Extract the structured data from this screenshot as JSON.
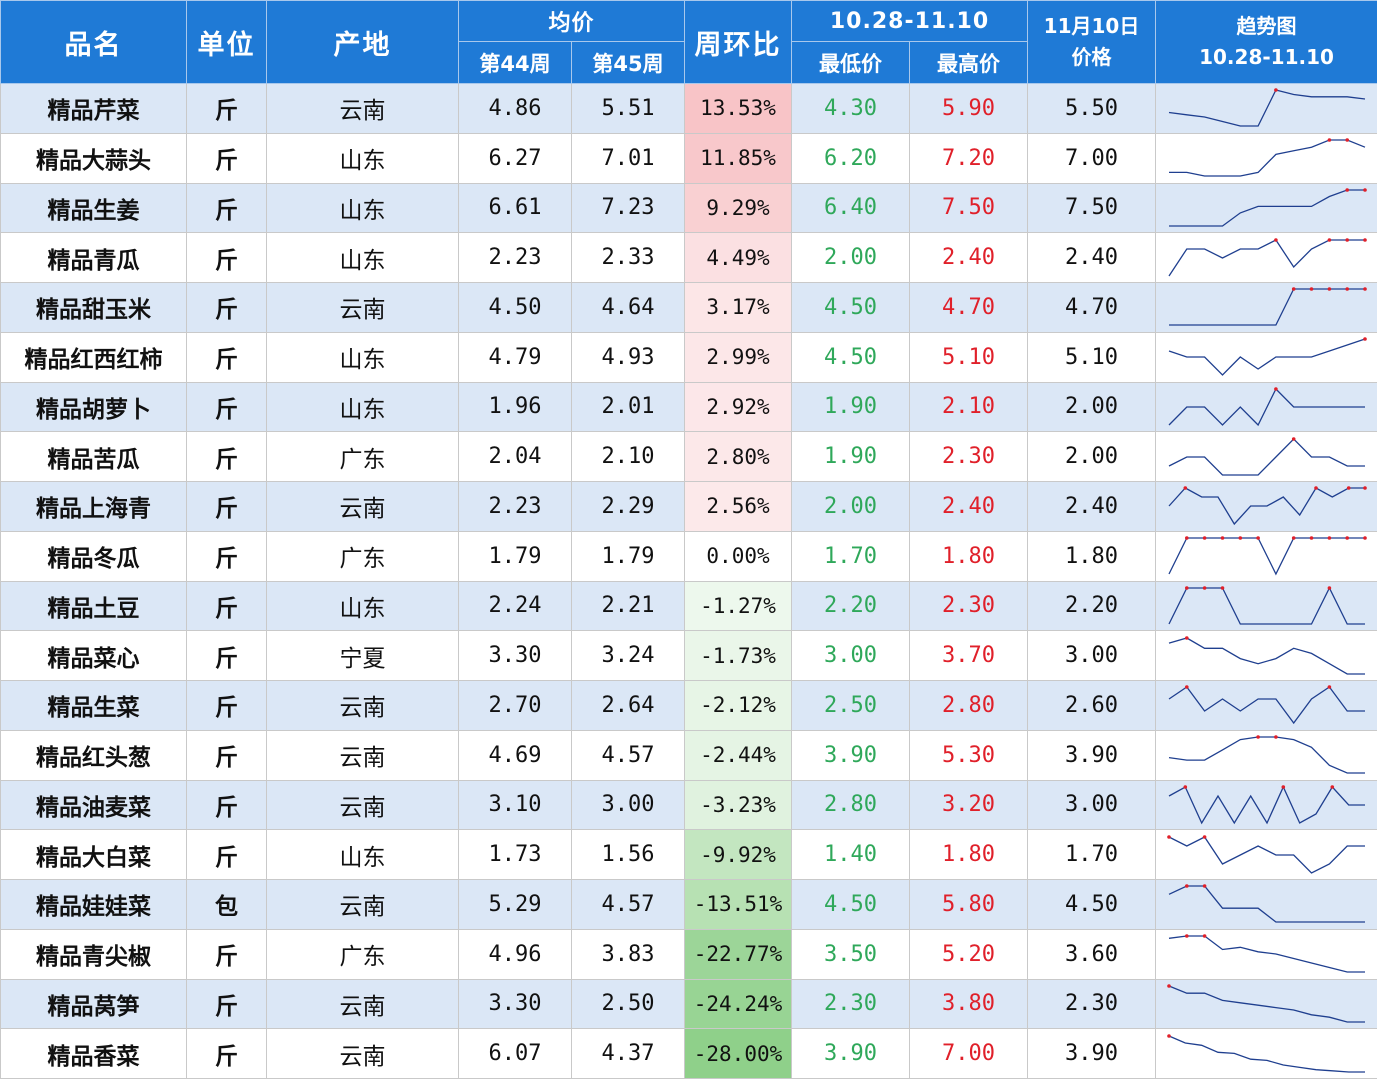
{
  "header": {
    "name": "品名",
    "unit": "单位",
    "origin": "产地",
    "avg_price": "均价",
    "week44": "第44周",
    "week45": "第45周",
    "wow": "周环比",
    "range": "10.28-11.10",
    "low": "最低价",
    "high": "最高价",
    "price_date_line1": "11月10日",
    "price_date_line2": "价格",
    "trend_line1": "趋势图",
    "trend_line2": "10.28-11.10"
  },
  "colors": {
    "header_bg": "#1f7ad6",
    "row_blue": "#dbe7f6",
    "low_text": "#2fa85a",
    "high_text": "#e0202a",
    "positive_max": "#f4a3a8",
    "negative_max": "#8fd08a"
  },
  "rows": [
    {
      "name": "精品芹菜",
      "unit": "斤",
      "origin": "云南",
      "w44": "4.86",
      "w45": "5.51",
      "chg": "13.53%",
      "chg_value": 13.53,
      "low": "4.30",
      "high": "5.90",
      "price": "5.50",
      "trend": [
        4.9,
        4.8,
        4.7,
        4.5,
        4.3,
        4.3,
        5.9,
        5.7,
        5.6,
        5.6,
        5.6,
        5.5
      ]
    },
    {
      "name": "精品大蒜头",
      "unit": "斤",
      "origin": "山东",
      "w44": "6.27",
      "w45": "7.01",
      "chg": "11.85%",
      "chg_value": 11.85,
      "low": "6.20",
      "high": "7.20",
      "price": "7.00",
      "trend": [
        6.3,
        6.3,
        6.2,
        6.2,
        6.2,
        6.3,
        6.8,
        6.9,
        7.0,
        7.2,
        7.2,
        7.0
      ]
    },
    {
      "name": "精品生姜",
      "unit": "斤",
      "origin": "山东",
      "w44": "6.61",
      "w45": "7.23",
      "chg": "9.29%",
      "chg_value": 9.29,
      "low": "6.40",
      "high": "7.50",
      "price": "7.50",
      "trend": [
        6.4,
        6.4,
        6.4,
        6.4,
        6.8,
        7.0,
        7.0,
        7.0,
        7.0,
        7.3,
        7.5,
        7.5
      ]
    },
    {
      "name": "精品青瓜",
      "unit": "斤",
      "origin": "山东",
      "w44": "2.23",
      "w45": "2.33",
      "chg": "4.49%",
      "chg_value": 4.49,
      "low": "2.00",
      "high": "2.40",
      "price": "2.40",
      "trend": [
        2.0,
        2.3,
        2.3,
        2.2,
        2.3,
        2.3,
        2.4,
        2.1,
        2.3,
        2.4,
        2.4,
        2.4
      ]
    },
    {
      "name": "精品甜玉米",
      "unit": "斤",
      "origin": "云南",
      "w44": "4.50",
      "w45": "4.64",
      "chg": "3.17%",
      "chg_value": 3.17,
      "low": "4.50",
      "high": "4.70",
      "price": "4.70",
      "trend": [
        4.5,
        4.5,
        4.5,
        4.5,
        4.5,
        4.5,
        4.5,
        4.7,
        4.7,
        4.7,
        4.7,
        4.7
      ]
    },
    {
      "name": "精品红西红柿",
      "unit": "斤",
      "origin": "山东",
      "w44": "4.79",
      "w45": "4.93",
      "chg": "2.99%",
      "chg_value": 2.99,
      "low": "4.50",
      "high": "5.10",
      "price": "5.10",
      "trend": [
        4.9,
        4.8,
        4.8,
        4.5,
        4.8,
        4.6,
        4.8,
        4.8,
        4.8,
        4.9,
        5.0,
        5.1
      ]
    },
    {
      "name": "精品胡萝卜",
      "unit": "斤",
      "origin": "山东",
      "w44": "1.96",
      "w45": "2.01",
      "chg": "2.92%",
      "chg_value": 2.92,
      "low": "1.90",
      "high": "2.10",
      "price": "2.00",
      "trend": [
        1.9,
        2.0,
        2.0,
        1.9,
        2.0,
        1.9,
        2.1,
        2.0,
        2.0,
        2.0,
        2.0,
        2.0
      ]
    },
    {
      "name": "精品苦瓜",
      "unit": "斤",
      "origin": "广东",
      "w44": "2.04",
      "w45": "2.10",
      "chg": "2.80%",
      "chg_value": 2.8,
      "low": "1.90",
      "high": "2.30",
      "price": "2.00",
      "trend": [
        2.0,
        2.1,
        2.1,
        1.9,
        1.9,
        1.9,
        2.1,
        2.3,
        2.1,
        2.1,
        2.0,
        2.0
      ]
    },
    {
      "name": "精品上海青",
      "unit": "斤",
      "origin": "云南",
      "w44": "2.23",
      "w45": "2.29",
      "chg": "2.56%",
      "chg_value": 2.56,
      "low": "2.00",
      "high": "2.40",
      "price": "2.40",
      "trend": [
        2.2,
        2.4,
        2.3,
        2.3,
        2.0,
        2.2,
        2.2,
        2.3,
        2.1,
        2.4,
        2.3,
        2.4,
        2.4
      ]
    },
    {
      "name": "精品冬瓜",
      "unit": "斤",
      "origin": "广东",
      "w44": "1.79",
      "w45": "1.79",
      "chg": "0.00%",
      "chg_value": 0.0,
      "low": "1.70",
      "high": "1.80",
      "price": "1.80",
      "trend": [
        1.7,
        1.8,
        1.8,
        1.8,
        1.8,
        1.8,
        1.7,
        1.8,
        1.8,
        1.8,
        1.8,
        1.8
      ]
    },
    {
      "name": "精品土豆",
      "unit": "斤",
      "origin": "山东",
      "w44": "2.24",
      "w45": "2.21",
      "chg": "-1.27%",
      "chg_value": -1.27,
      "low": "2.20",
      "high": "2.30",
      "price": "2.20",
      "trend": [
        2.2,
        2.3,
        2.3,
        2.3,
        2.2,
        2.2,
        2.2,
        2.2,
        2.2,
        2.3,
        2.2,
        2.2
      ]
    },
    {
      "name": "精品菜心",
      "unit": "斤",
      "origin": "宁夏",
      "w44": "3.30",
      "w45": "3.24",
      "chg": "-1.73%",
      "chg_value": -1.73,
      "low": "3.00",
      "high": "3.70",
      "price": "3.00",
      "trend": [
        3.6,
        3.7,
        3.5,
        3.5,
        3.3,
        3.2,
        3.3,
        3.5,
        3.4,
        3.2,
        3.0,
        3.0
      ]
    },
    {
      "name": "精品生菜",
      "unit": "斤",
      "origin": "云南",
      "w44": "2.70",
      "w45": "2.64",
      "chg": "-2.12%",
      "chg_value": -2.12,
      "low": "2.50",
      "high": "2.80",
      "price": "2.60",
      "trend": [
        2.7,
        2.8,
        2.6,
        2.7,
        2.6,
        2.7,
        2.7,
        2.5,
        2.7,
        2.8,
        2.6,
        2.6
      ]
    },
    {
      "name": "精品红头葱",
      "unit": "斤",
      "origin": "云南",
      "w44": "4.69",
      "w45": "4.57",
      "chg": "-2.44%",
      "chg_value": -2.44,
      "low": "3.90",
      "high": "5.30",
      "price": "3.90",
      "trend": [
        4.5,
        4.4,
        4.4,
        4.8,
        5.2,
        5.3,
        5.3,
        5.2,
        4.9,
        4.2,
        3.9,
        3.9
      ]
    },
    {
      "name": "精品油麦菜",
      "unit": "斤",
      "origin": "云南",
      "w44": "3.10",
      "w45": "3.00",
      "chg": "-3.23%",
      "chg_value": -3.23,
      "low": "2.80",
      "high": "3.20",
      "price": "3.00",
      "trend": [
        3.1,
        3.2,
        2.8,
        3.1,
        2.8,
        3.1,
        2.8,
        3.2,
        2.8,
        2.9,
        3.2,
        3.0,
        3.0
      ]
    },
    {
      "name": "精品大白菜",
      "unit": "斤",
      "origin": "山东",
      "w44": "1.73",
      "w45": "1.56",
      "chg": "-9.92%",
      "chg_value": -9.92,
      "low": "1.40",
      "high": "1.80",
      "price": "1.70",
      "trend": [
        1.8,
        1.7,
        1.8,
        1.5,
        1.6,
        1.7,
        1.6,
        1.6,
        1.4,
        1.5,
        1.7,
        1.7
      ]
    },
    {
      "name": "精品娃娃菜",
      "unit": "包",
      "origin": "云南",
      "w44": "5.29",
      "w45": "4.57",
      "chg": "-13.51%",
      "chg_value": -13.51,
      "low": "4.50",
      "high": "5.80",
      "price": "4.50",
      "trend": [
        5.5,
        5.8,
        5.8,
        5.0,
        5.0,
        5.0,
        4.5,
        4.5,
        4.5,
        4.5,
        4.5,
        4.5
      ]
    },
    {
      "name": "精品青尖椒",
      "unit": "斤",
      "origin": "广东",
      "w44": "4.96",
      "w45": "3.83",
      "chg": "-22.77%",
      "chg_value": -22.77,
      "low": "3.50",
      "high": "5.20",
      "price": "3.60",
      "trend": [
        5.1,
        5.2,
        5.2,
        4.6,
        4.7,
        4.5,
        4.4,
        4.2,
        4.0,
        3.8,
        3.6,
        3.6
      ]
    },
    {
      "name": "精品莴笋",
      "unit": "斤",
      "origin": "云南",
      "w44": "3.30",
      "w45": "2.50",
      "chg": "-24.24%",
      "chg_value": -24.24,
      "low": "2.30",
      "high": "3.80",
      "price": "2.30",
      "trend": [
        3.8,
        3.5,
        3.5,
        3.2,
        3.1,
        3.0,
        2.9,
        2.8,
        2.6,
        2.5,
        2.3,
        2.3
      ]
    },
    {
      "name": "精品香菜",
      "unit": "斤",
      "origin": "云南",
      "w44": "6.07",
      "w45": "4.37",
      "chg": "-28.00%",
      "chg_value": -28.0,
      "low": "3.90",
      "high": "7.00",
      "price": "3.90",
      "trend": [
        7.0,
        6.4,
        6.2,
        5.6,
        5.5,
        5.0,
        4.9,
        4.5,
        4.3,
        4.1,
        4.0,
        3.9,
        3.9
      ]
    }
  ]
}
